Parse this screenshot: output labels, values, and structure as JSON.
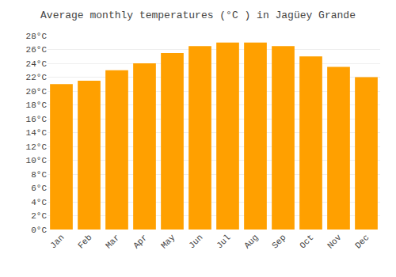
{
  "chart_data": {
    "type": "bar",
    "title": "Average monthly temperatures (°C ) in Jagüey Grande",
    "categories": [
      "Jan",
      "Feb",
      "Mar",
      "Apr",
      "May",
      "Jun",
      "Jul",
      "Aug",
      "Sep",
      "Oct",
      "Nov",
      "Dec"
    ],
    "values": [
      21.0,
      21.5,
      23.0,
      24.0,
      25.5,
      26.5,
      27.0,
      27.0,
      26.5,
      25.0,
      23.5,
      22.0
    ],
    "color": "#FFA000",
    "ylim": [
      0,
      28
    ],
    "yticks": [
      {
        "value": 0,
        "label": "0°C"
      },
      {
        "value": 2,
        "label": "2°C"
      },
      {
        "value": 4,
        "label": "4°C"
      },
      {
        "value": 6,
        "label": "6°C"
      },
      {
        "value": 8,
        "label": "8°C"
      },
      {
        "value": 10,
        "label": "10°C"
      },
      {
        "value": 12,
        "label": "12°C"
      },
      {
        "value": 14,
        "label": "14°C"
      },
      {
        "value": 16,
        "label": "16°C"
      },
      {
        "value": 18,
        "label": "18°C"
      },
      {
        "value": 20,
        "label": "20°C"
      },
      {
        "value": 22,
        "label": "22°C"
      },
      {
        "value": 24,
        "label": "24°C"
      },
      {
        "value": 26,
        "label": "26°C"
      },
      {
        "value": 28,
        "label": "28°C"
      }
    ],
    "grid": true
  }
}
